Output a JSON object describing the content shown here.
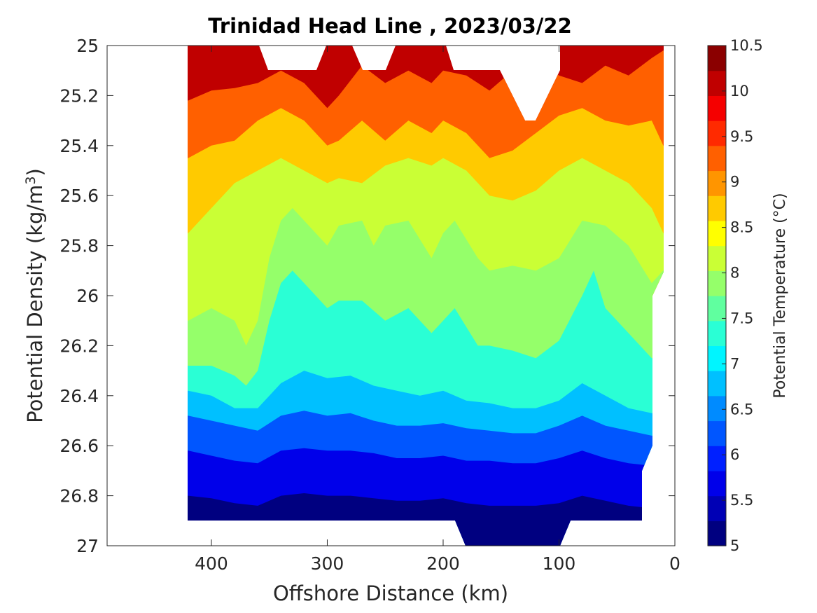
{
  "chart_data": {
    "type": "contour",
    "title": "Trinidad Head Line , 2023/03/22",
    "xlabel": "Offshore Distance (km)",
    "ylabel": "Potential Density (kg/m3)",
    "ylabel_main": "Potential Density (kg/m",
    "ylabel_sup": "3",
    "ylabel_end": ")",
    "colorbar_label": "Potential Temperature (°C)",
    "xlim": [
      490,
      0
    ],
    "x_reversed": true,
    "ylim": [
      25,
      27
    ],
    "y_reversed": true,
    "x_ticks": [
      400,
      300,
      200,
      100,
      0
    ],
    "x_tick_labels": [
      "400",
      "300",
      "200",
      "100",
      "0"
    ],
    "y_ticks": [
      25,
      25.2,
      25.4,
      25.6,
      25.8,
      26,
      26.2,
      26.4,
      26.6,
      26.8,
      27
    ],
    "y_tick_labels": [
      "25",
      "25.2",
      "25.4",
      "25.6",
      "25.8",
      "26",
      "26.2",
      "26.4",
      "26.6",
      "26.8",
      "27"
    ],
    "color_levels": [
      5,
      5.5,
      6,
      6.5,
      7,
      7.5,
      8,
      8.5,
      9,
      9.5,
      10,
      10.5
    ],
    "colorbar_tick_labels": [
      "5",
      "5.5",
      "6",
      "6.5",
      "7",
      "7.5",
      "8",
      "8.5",
      "9",
      "9.5",
      "10",
      "10.5"
    ],
    "colormap": [
      "#000080",
      "#0000b5",
      "#0000ea",
      "#0020ff",
      "#0056ff",
      "#008bff",
      "#00c0ff",
      "#00f5ff",
      "#2affd5",
      "#60ff9f",
      "#95ff6a",
      "#caff35",
      "#ffff00",
      "#ffca00",
      "#ff9500",
      "#ff6000",
      "#ff2a00",
      "#f50000",
      "#c00000",
      "#8b0000"
    ],
    "data_extent_x": [
      420,
      10
    ],
    "data_extent_y": [
      25,
      26.9
    ],
    "isotherms": [
      {
        "level": 9.5,
        "points": [
          [
            420,
            25.22
          ],
          [
            400,
            25.18
          ],
          [
            380,
            25.17
          ],
          [
            360,
            25.15
          ],
          [
            340,
            25.1
          ],
          [
            320,
            25.15
          ],
          [
            300,
            25.25
          ],
          [
            290,
            25.2
          ],
          [
            270,
            25.08
          ],
          [
            250,
            25.15
          ],
          [
            230,
            25.1
          ],
          [
            210,
            25.15
          ],
          [
            200,
            25.1
          ],
          [
            180,
            25.12
          ],
          [
            160,
            25.18
          ],
          [
            140,
            25.1
          ],
          [
            120,
            25.05
          ],
          [
            100,
            25.12
          ],
          [
            80,
            25.15
          ],
          [
            60,
            25.08
          ],
          [
            40,
            25.12
          ],
          [
            20,
            25.05
          ],
          [
            10,
            25.02
          ]
        ]
      },
      {
        "level": 9,
        "points": [
          [
            420,
            25.45
          ],
          [
            400,
            25.4
          ],
          [
            380,
            25.38
          ],
          [
            360,
            25.3
          ],
          [
            340,
            25.25
          ],
          [
            320,
            25.3
          ],
          [
            300,
            25.4
          ],
          [
            290,
            25.38
          ],
          [
            270,
            25.3
          ],
          [
            250,
            25.38
          ],
          [
            230,
            25.3
          ],
          [
            210,
            25.35
          ],
          [
            200,
            25.3
          ],
          [
            180,
            25.35
          ],
          [
            160,
            25.45
          ],
          [
            140,
            25.42
          ],
          [
            120,
            25.35
          ],
          [
            100,
            25.28
          ],
          [
            80,
            25.25
          ],
          [
            60,
            25.3
          ],
          [
            40,
            25.32
          ],
          [
            20,
            25.3
          ],
          [
            10,
            25.4
          ]
        ]
      },
      {
        "level": 8.5,
        "points": [
          [
            420,
            25.75
          ],
          [
            400,
            25.65
          ],
          [
            380,
            25.55
          ],
          [
            360,
            25.5
          ],
          [
            340,
            25.45
          ],
          [
            320,
            25.5
          ],
          [
            300,
            25.55
          ],
          [
            290,
            25.53
          ],
          [
            270,
            25.55
          ],
          [
            250,
            25.48
          ],
          [
            230,
            25.45
          ],
          [
            210,
            25.48
          ],
          [
            200,
            25.45
          ],
          [
            180,
            25.5
          ],
          [
            160,
            25.6
          ],
          [
            140,
            25.62
          ],
          [
            120,
            25.58
          ],
          [
            100,
            25.5
          ],
          [
            80,
            25.45
          ],
          [
            60,
            25.5
          ],
          [
            40,
            25.55
          ],
          [
            20,
            25.65
          ],
          [
            10,
            25.75
          ]
        ]
      },
      {
        "level": 8,
        "points": [
          [
            420,
            26.1
          ],
          [
            400,
            26.05
          ],
          [
            380,
            26.1
          ],
          [
            370,
            26.2
          ],
          [
            360,
            26.1
          ],
          [
            350,
            25.85
          ],
          [
            340,
            25.7
          ],
          [
            330,
            25.65
          ],
          [
            320,
            25.7
          ],
          [
            300,
            25.8
          ],
          [
            290,
            25.72
          ],
          [
            270,
            25.7
          ],
          [
            260,
            25.8
          ],
          [
            250,
            25.72
          ],
          [
            230,
            25.7
          ],
          [
            210,
            25.85
          ],
          [
            200,
            25.75
          ],
          [
            190,
            25.7
          ],
          [
            170,
            25.85
          ],
          [
            160,
            25.9
          ],
          [
            140,
            25.88
          ],
          [
            120,
            25.9
          ],
          [
            100,
            25.85
          ],
          [
            80,
            25.7
          ],
          [
            60,
            25.72
          ],
          [
            40,
            25.8
          ],
          [
            20,
            25.95
          ],
          [
            10,
            25.9
          ]
        ]
      },
      {
        "level": 7.5,
        "points": [
          [
            420,
            26.28
          ],
          [
            400,
            26.28
          ],
          [
            380,
            26.32
          ],
          [
            370,
            26.36
          ],
          [
            360,
            26.3
          ],
          [
            350,
            26.1
          ],
          [
            340,
            25.95
          ],
          [
            330,
            25.9
          ],
          [
            320,
            25.95
          ],
          [
            300,
            26.05
          ],
          [
            290,
            26.02
          ],
          [
            270,
            26.02
          ],
          [
            250,
            26.1
          ],
          [
            230,
            26.05
          ],
          [
            210,
            26.15
          ],
          [
            200,
            26.1
          ],
          [
            190,
            26.05
          ],
          [
            170,
            26.2
          ],
          [
            160,
            26.2
          ],
          [
            140,
            26.22
          ],
          [
            120,
            26.25
          ],
          [
            100,
            26.18
          ],
          [
            80,
            26.0
          ],
          [
            70,
            25.9
          ],
          [
            60,
            26.05
          ],
          [
            40,
            26.15
          ],
          [
            20,
            26.25
          ]
        ]
      },
      {
        "level": 7,
        "points": [
          [
            420,
            26.38
          ],
          [
            400,
            26.4
          ],
          [
            380,
            26.45
          ],
          [
            360,
            26.45
          ],
          [
            340,
            26.35
          ],
          [
            320,
            26.3
          ],
          [
            300,
            26.33
          ],
          [
            280,
            26.32
          ],
          [
            260,
            26.36
          ],
          [
            240,
            26.38
          ],
          [
            220,
            26.4
          ],
          [
            200,
            26.38
          ],
          [
            180,
            26.42
          ],
          [
            160,
            26.43
          ],
          [
            140,
            26.45
          ],
          [
            120,
            26.45
          ],
          [
            100,
            26.42
          ],
          [
            80,
            26.35
          ],
          [
            60,
            26.4
          ],
          [
            40,
            26.45
          ],
          [
            20,
            26.47
          ]
        ]
      },
      {
        "level": 6.5,
        "points": [
          [
            420,
            26.48
          ],
          [
            400,
            26.5
          ],
          [
            380,
            26.52
          ],
          [
            360,
            26.54
          ],
          [
            340,
            26.48
          ],
          [
            320,
            26.46
          ],
          [
            300,
            26.48
          ],
          [
            280,
            26.47
          ],
          [
            260,
            26.5
          ],
          [
            240,
            26.52
          ],
          [
            220,
            26.52
          ],
          [
            200,
            26.51
          ],
          [
            180,
            26.53
          ],
          [
            160,
            26.54
          ],
          [
            140,
            26.55
          ],
          [
            120,
            26.55
          ],
          [
            100,
            26.52
          ],
          [
            80,
            26.48
          ],
          [
            60,
            26.52
          ],
          [
            40,
            26.54
          ],
          [
            20,
            26.56
          ]
        ]
      },
      {
        "level": 6,
        "points": [
          [
            420,
            26.62
          ],
          [
            400,
            26.64
          ],
          [
            380,
            26.66
          ],
          [
            360,
            26.67
          ],
          [
            340,
            26.62
          ],
          [
            320,
            26.61
          ],
          [
            300,
            26.62
          ],
          [
            280,
            26.62
          ],
          [
            260,
            26.63
          ],
          [
            240,
            26.65
          ],
          [
            220,
            26.65
          ],
          [
            200,
            26.64
          ],
          [
            180,
            26.66
          ],
          [
            160,
            26.66
          ],
          [
            140,
            26.67
          ],
          [
            120,
            26.67
          ],
          [
            100,
            26.65
          ],
          [
            80,
            26.62
          ],
          [
            60,
            26.65
          ],
          [
            40,
            26.67
          ],
          [
            20,
            26.68
          ]
        ]
      },
      {
        "level": 5.5,
        "points": [
          [
            420,
            26.8
          ],
          [
            400,
            26.81
          ],
          [
            380,
            26.83
          ],
          [
            360,
            26.84
          ],
          [
            340,
            26.8
          ],
          [
            320,
            26.79
          ],
          [
            300,
            26.8
          ],
          [
            280,
            26.8
          ],
          [
            260,
            26.81
          ],
          [
            240,
            26.82
          ],
          [
            220,
            26.82
          ],
          [
            200,
            26.81
          ],
          [
            180,
            26.83
          ],
          [
            160,
            26.84
          ],
          [
            140,
            26.84
          ],
          [
            120,
            26.84
          ],
          [
            100,
            26.83
          ],
          [
            80,
            26.8
          ],
          [
            60,
            26.82
          ],
          [
            40,
            26.84
          ],
          [
            20,
            26.85
          ]
        ]
      }
    ],
    "grid": false
  }
}
